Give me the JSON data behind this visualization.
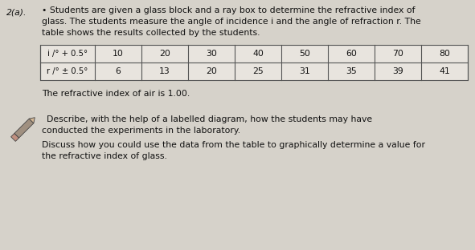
{
  "question_number": "2(a).",
  "line1": "• Students are given a glass block and a ray box to determine the refractive index of",
  "line2": "glass. The students measure the angle of incidence i and the angle of refraction r. The",
  "line3": "table shows the results collected by the students.",
  "table_row1_label": "i /° + 0.5°",
  "table_row2_label": "r /° ± 0.5°",
  "table_values_i": [
    10,
    20,
    30,
    40,
    50,
    60,
    70,
    80
  ],
  "table_values_r": [
    6,
    13,
    20,
    25,
    31,
    35,
    39,
    41
  ],
  "refractive_text": "The refractive index of air is 1.00.",
  "describe_line1": "Describe, with the help of a labelled diagram, how the students may have",
  "describe_line2": "conducted the experiments in the laboratory.",
  "discuss_line1": "Discuss how you could use the data from the table to graphically determine a value for",
  "discuss_line2": "the refractive index of glass.",
  "bg_color": "#d6d2ca",
  "text_color": "#111111",
  "table_bg": "#e8e4de",
  "font_size": 7.8,
  "font_size_small": 7.2,
  "font_size_qnum": 7.8
}
